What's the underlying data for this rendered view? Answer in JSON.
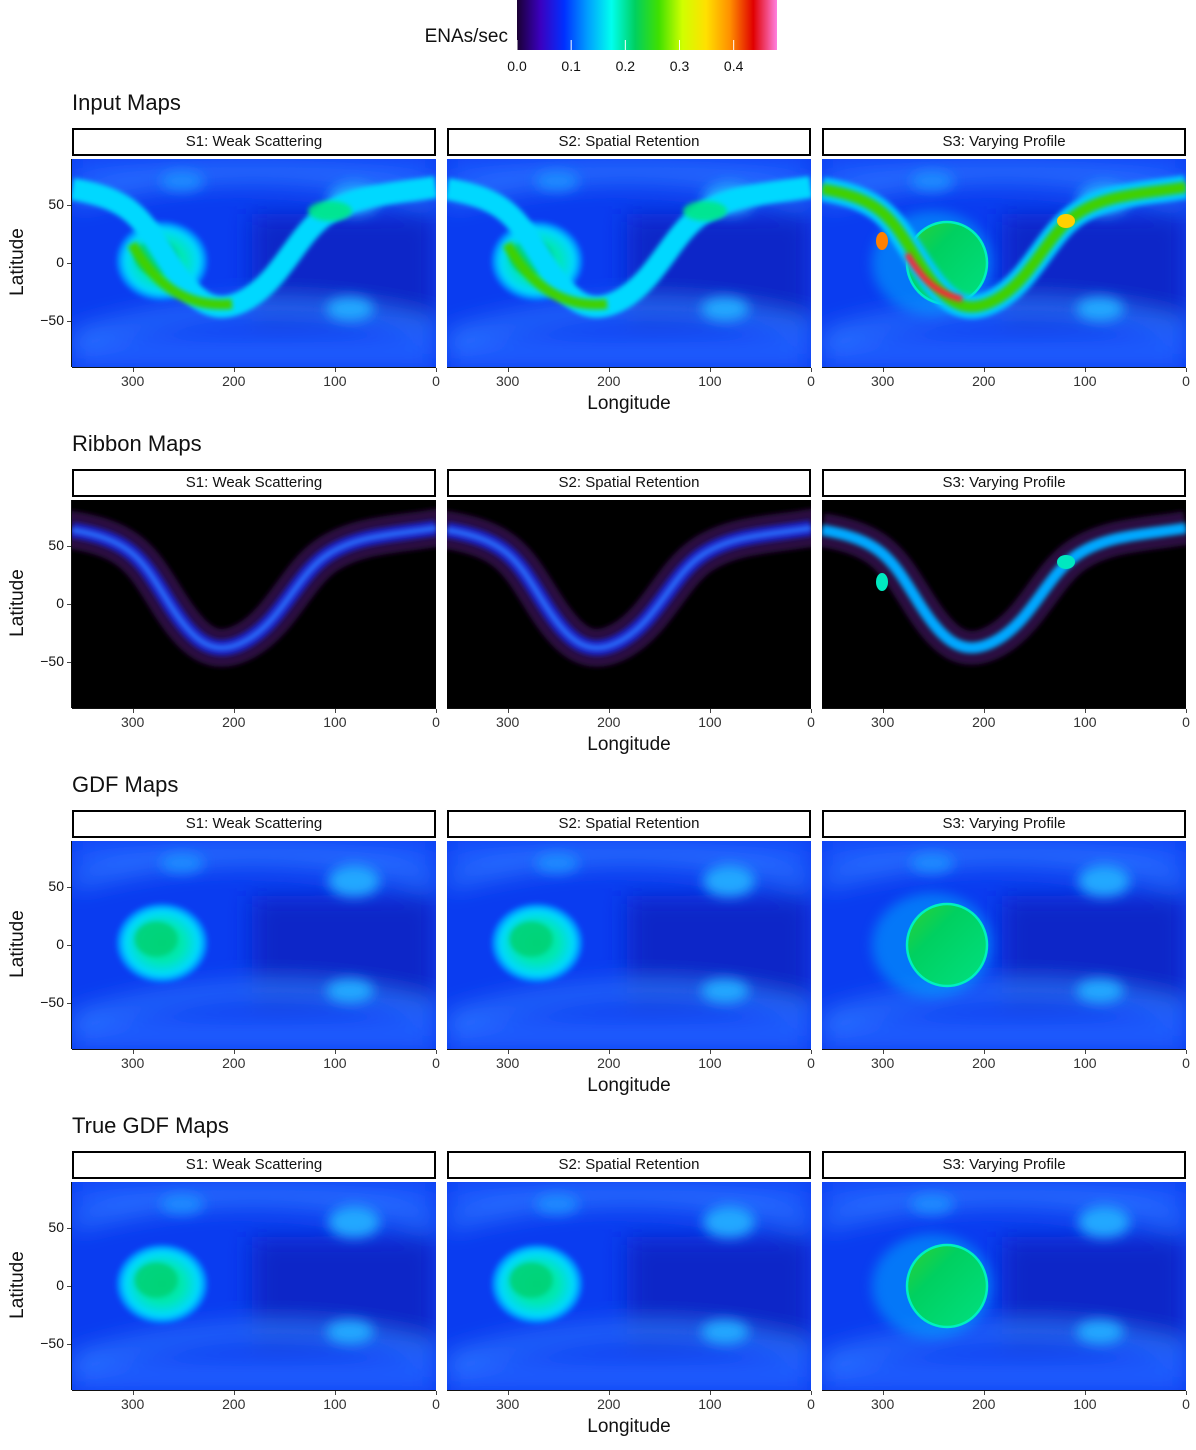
{
  "legend": {
    "title": "ENAs/sec",
    "ticks": [
      "0.0",
      "0.1",
      "0.2",
      "0.3",
      "0.4"
    ],
    "tick_values": [
      0.0,
      0.1,
      0.2,
      0.3,
      0.4
    ],
    "range": [
      0.0,
      0.48
    ],
    "colors": [
      "#1a0033",
      "#3b00c0",
      "#0030ff",
      "#00a0ff",
      "#00ffee",
      "#00d060",
      "#40e000",
      "#d0ff00",
      "#ffe000",
      "#ff9000",
      "#e00000",
      "#ff80e0"
    ]
  },
  "chart_data": [
    {
      "type": "heatmap",
      "title": "Input Maps",
      "xlabel": "Longitude",
      "ylabel": "Latitude",
      "xlim": [
        360,
        0
      ],
      "ylim": [
        -90,
        90
      ],
      "xticks": [
        "300",
        "200",
        "100",
        "0"
      ],
      "yticks": [
        "50",
        "0",
        "−50"
      ],
      "panels": [
        {
          "label": "S1: Weak Scattering",
          "ribbon": "strong",
          "background": "blue",
          "blob": "textured"
        },
        {
          "label": "S2: Spatial Retention",
          "ribbon": "strong",
          "background": "blue",
          "blob": "textured"
        },
        {
          "label": "S3: Varying Profile",
          "ribbon": "varying",
          "background": "blue",
          "blob": "disc"
        }
      ]
    },
    {
      "type": "heatmap",
      "title": "Ribbon Maps",
      "xlabel": "Longitude",
      "ylabel": "Latitude",
      "xlim": [
        360,
        0
      ],
      "ylim": [
        -90,
        90
      ],
      "xticks": [
        "300",
        "200",
        "100",
        "0"
      ],
      "yticks": [
        "50",
        "0",
        "−50"
      ],
      "panels": [
        {
          "label": "S1: Weak Scattering",
          "ribbon": "weak",
          "background": "black",
          "blob": "none"
        },
        {
          "label": "S2: Spatial Retention",
          "ribbon": "weak",
          "background": "black",
          "blob": "none"
        },
        {
          "label": "S3: Varying Profile",
          "ribbon": "varying",
          "background": "black",
          "blob": "none"
        }
      ]
    },
    {
      "type": "heatmap",
      "title": "GDF Maps",
      "xlabel": "Longitude",
      "ylabel": "Latitude",
      "xlim": [
        360,
        0
      ],
      "ylim": [
        -90,
        90
      ],
      "xticks": [
        "300",
        "200",
        "100",
        "0"
      ],
      "yticks": [
        "50",
        "0",
        "−50"
      ],
      "panels": [
        {
          "label": "S1: Weak Scattering",
          "ribbon": "none",
          "background": "blue",
          "blob": "textured"
        },
        {
          "label": "S2: Spatial Retention",
          "ribbon": "none",
          "background": "blue",
          "blob": "textured"
        },
        {
          "label": "S3: Varying Profile",
          "ribbon": "none",
          "background": "blue",
          "blob": "disc"
        }
      ]
    },
    {
      "type": "heatmap",
      "title": "True GDF Maps",
      "xlabel": "Longitude",
      "ylabel": "Latitude",
      "xlim": [
        360,
        0
      ],
      "ylim": [
        -90,
        90
      ],
      "xticks": [
        "300",
        "200",
        "100",
        "0"
      ],
      "yticks": [
        "50",
        "0",
        "−50"
      ],
      "panels": [
        {
          "label": "S1: Weak Scattering",
          "ribbon": "none",
          "background": "blue",
          "blob": "textured"
        },
        {
          "label": "S2: Spatial Retention",
          "ribbon": "none",
          "background": "blue",
          "blob": "textured"
        },
        {
          "label": "S3: Varying Profile",
          "ribbon": "none",
          "background": "blue",
          "blob": "disc"
        }
      ]
    }
  ]
}
